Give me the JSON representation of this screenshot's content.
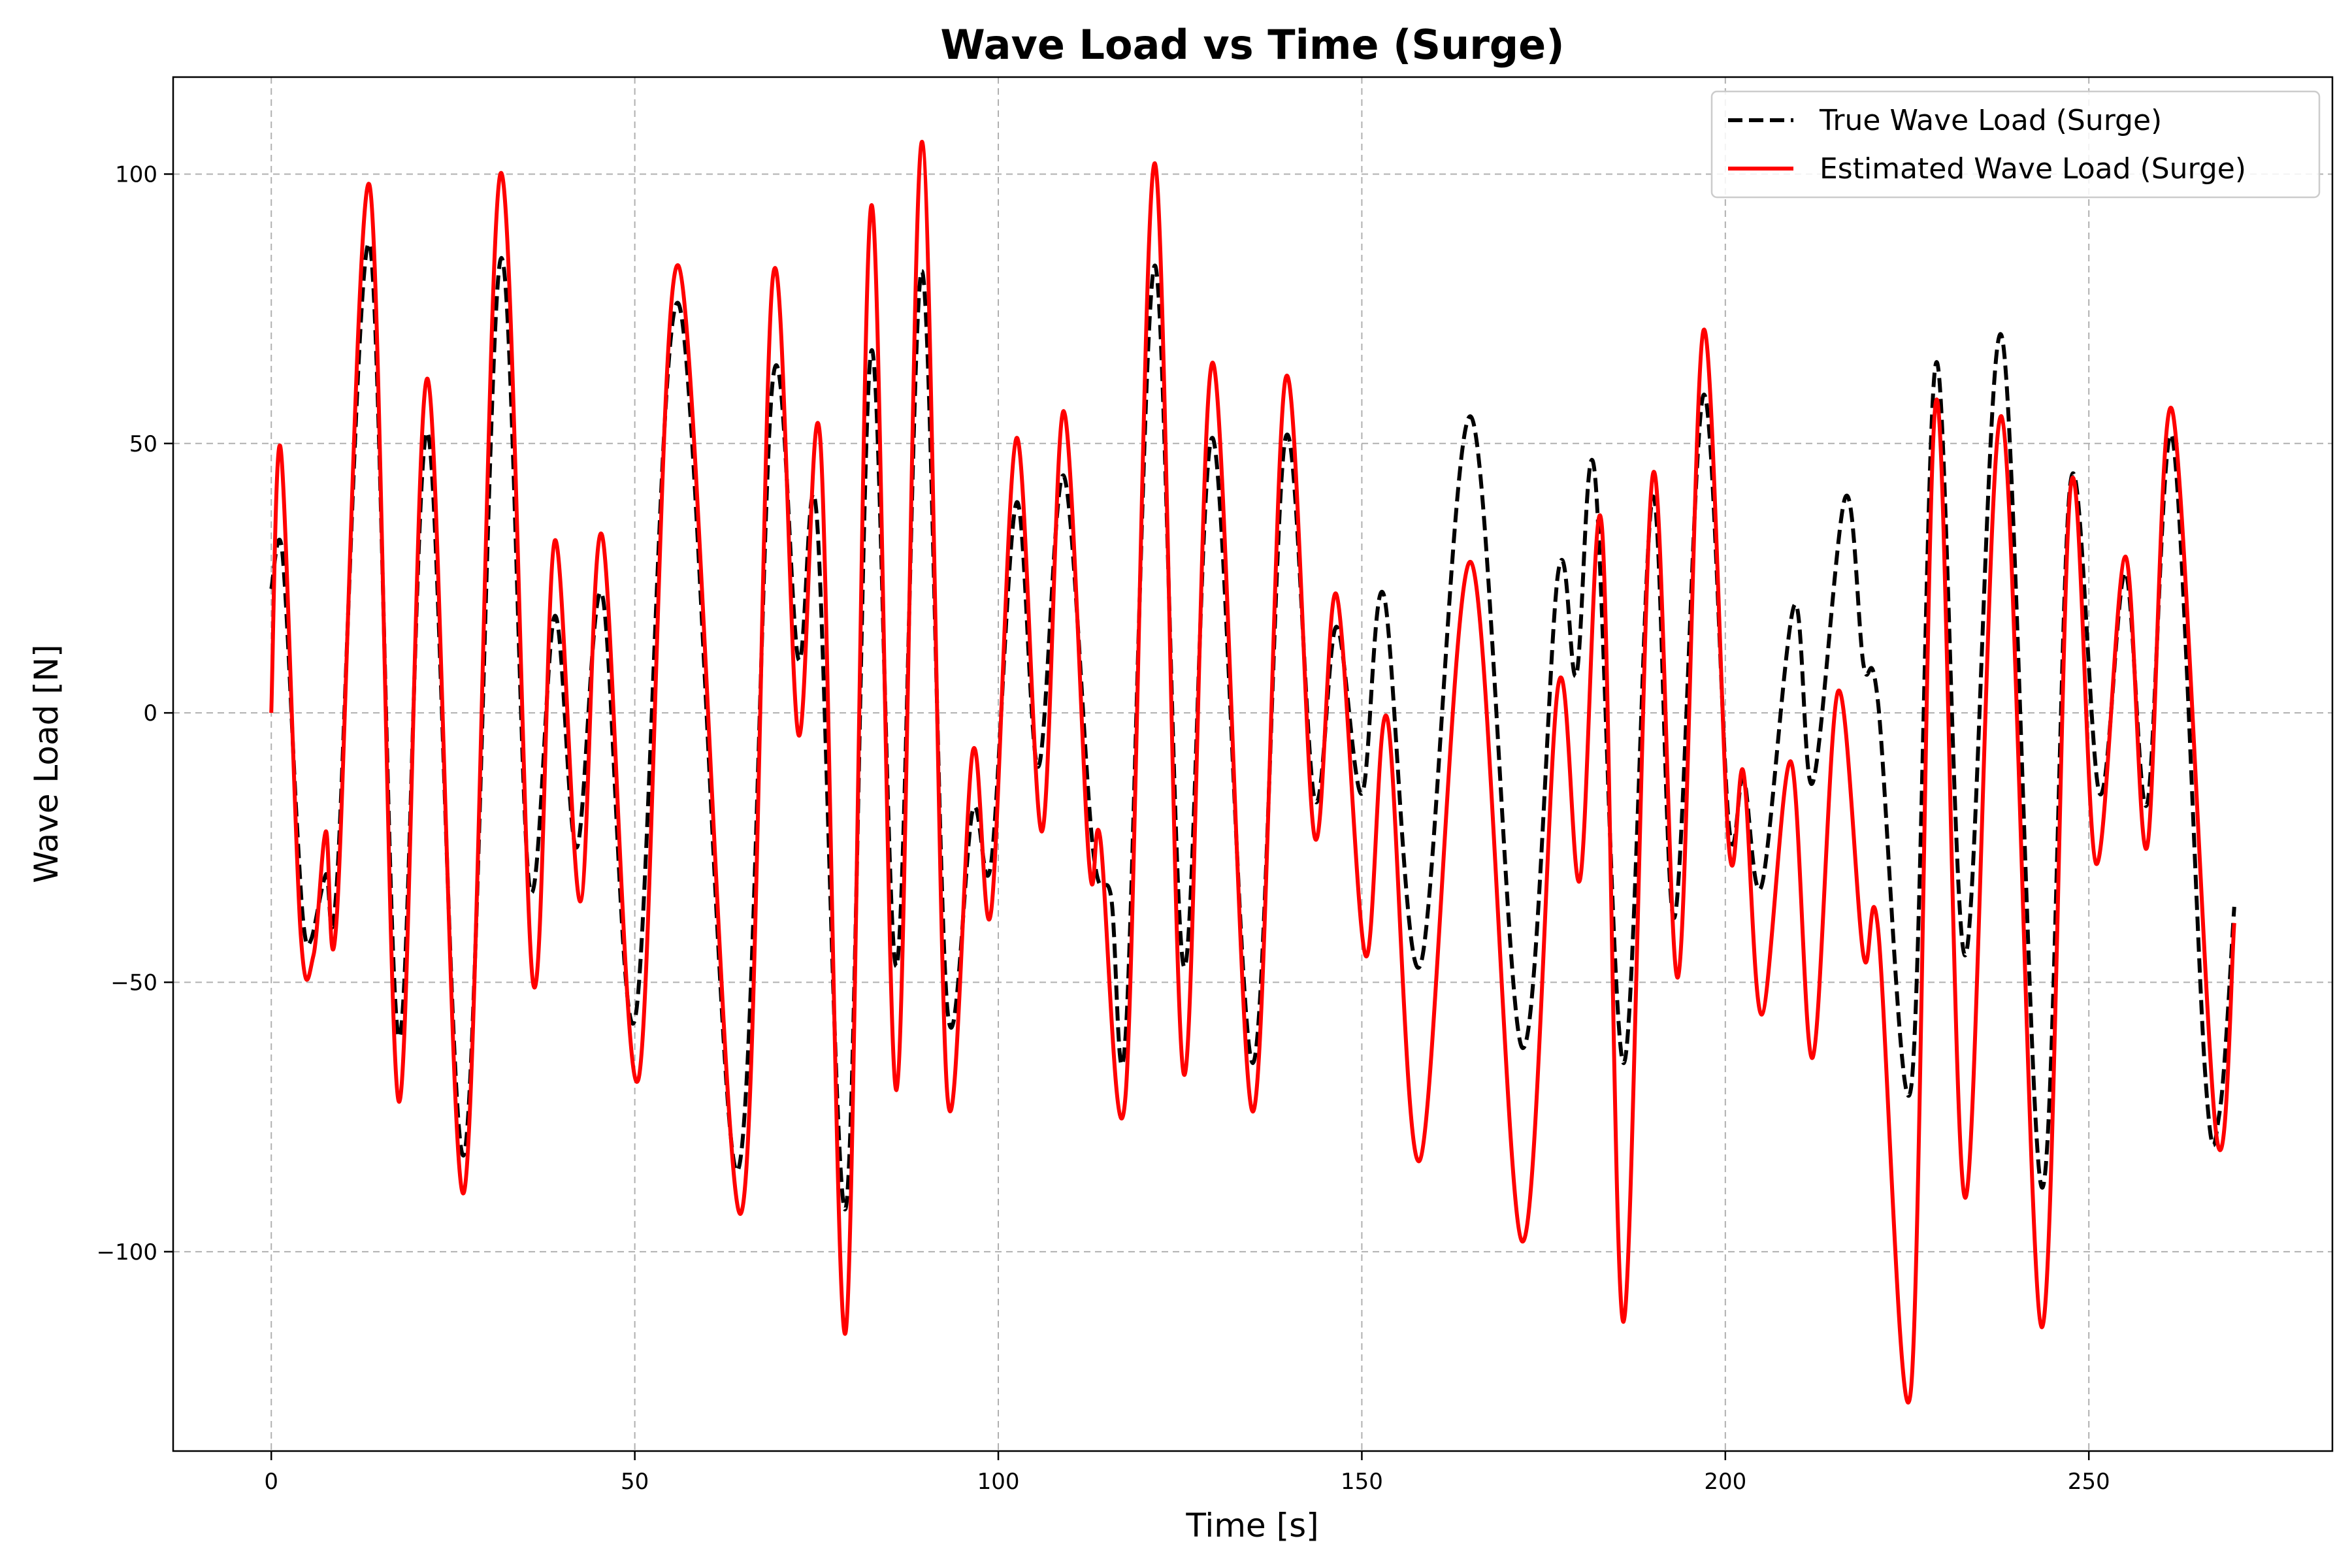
{
  "chart_data": {
    "type": "line",
    "title": "Wave Load vs Time (Surge)",
    "xlabel": "Time [s]",
    "ylabel": "Wave Load [N]",
    "xlim": [
      -13.5,
      283.5
    ],
    "ylim": [
      -137,
      118
    ],
    "xticks": [
      0,
      50,
      100,
      150,
      200,
      250
    ],
    "yticks": [
      -100,
      -50,
      0,
      50,
      100
    ],
    "xtick_labels": [
      "0",
      "50",
      "100",
      "150",
      "200",
      "250"
    ],
    "ytick_labels": [
      "−100",
      "−50",
      "0",
      "50",
      "100"
    ],
    "grid": true,
    "legend_position": "top-right",
    "series": [
      {
        "name": "True Wave Load (Surge)",
        "color": "#000000",
        "style": "dashed",
        "points": [
          [
            0,
            23
          ],
          [
            1.5,
            30
          ],
          [
            3.5,
            -20
          ],
          [
            4.5,
            -40
          ],
          [
            5.5,
            -42
          ],
          [
            7.5,
            -30
          ],
          [
            9,
            -32
          ],
          [
            13.5,
            87
          ],
          [
            17.5,
            -60
          ],
          [
            21.5,
            52
          ],
          [
            26.5,
            -82
          ],
          [
            31.5,
            84
          ],
          [
            35.5,
            -32
          ],
          [
            39,
            18
          ],
          [
            42,
            -25
          ],
          [
            45.5,
            22
          ],
          [
            50,
            -57
          ],
          [
            56,
            76
          ],
          [
            64,
            -85
          ],
          [
            69,
            62
          ],
          [
            72.5,
            10
          ],
          [
            75,
            37
          ],
          [
            79,
            -92
          ],
          [
            82.5,
            67
          ],
          [
            86,
            -47
          ],
          [
            89.5,
            82
          ],
          [
            93,
            -55
          ],
          [
            96.5,
            -18
          ],
          [
            99,
            -28
          ],
          [
            102.5,
            39
          ],
          [
            105.5,
            -10
          ],
          [
            109,
            44
          ],
          [
            113,
            -25
          ],
          [
            115.5,
            -34
          ],
          [
            117.5,
            -60
          ],
          [
            121.5,
            83
          ],
          [
            125.5,
            -47
          ],
          [
            129.5,
            51
          ],
          [
            135,
            -65
          ],
          [
            139.5,
            51
          ],
          [
            143.5,
            -16
          ],
          [
            146.5,
            16
          ],
          [
            150,
            -15
          ],
          [
            153,
            22
          ],
          [
            158,
            -47
          ],
          [
            165,
            55
          ],
          [
            172,
            -62
          ],
          [
            177,
            26
          ],
          [
            179.5,
            7
          ],
          [
            182,
            45
          ],
          [
            186,
            -65
          ],
          [
            190,
            40
          ],
          [
            193,
            -38
          ],
          [
            197,
            59
          ],
          [
            200.5,
            -21
          ],
          [
            202.5,
            -12
          ],
          [
            205,
            -32
          ],
          [
            209.5,
            20
          ],
          [
            212,
            -13
          ],
          [
            216.5,
            40
          ],
          [
            219,
            9
          ],
          [
            221,
            2
          ],
          [
            225.5,
            -70
          ],
          [
            229,
            65
          ],
          [
            233,
            -45
          ],
          [
            238,
            70
          ],
          [
            243.5,
            -88
          ],
          [
            247.5,
            43
          ],
          [
            251.5,
            -15
          ],
          [
            255,
            26
          ],
          [
            258,
            -17
          ],
          [
            261.5,
            51
          ],
          [
            266,
            -67
          ],
          [
            268,
            -74
          ],
          [
            270,
            -36
          ]
        ]
      },
      {
        "name": "Estimated Wave Load (Surge)",
        "color": "#ff0000",
        "style": "solid",
        "points": [
          [
            0,
            0
          ],
          [
            1.3,
            49
          ],
          [
            4,
            -40
          ],
          [
            5.8,
            -45
          ],
          [
            7.5,
            -22
          ],
          [
            9,
            -38
          ],
          [
            13.5,
            98
          ],
          [
            17.5,
            -72
          ],
          [
            21.5,
            62
          ],
          [
            26.5,
            -89
          ],
          [
            31.5,
            100
          ],
          [
            36,
            -50
          ],
          [
            39,
            32
          ],
          [
            42.5,
            -35
          ],
          [
            45.5,
            33
          ],
          [
            50.5,
            -68
          ],
          [
            56,
            83
          ],
          [
            64.5,
            -93
          ],
          [
            69,
            81
          ],
          [
            72.5,
            -4
          ],
          [
            75.5,
            51
          ],
          [
            79,
            -115
          ],
          [
            82.5,
            94
          ],
          [
            86,
            -70
          ],
          [
            89.5,
            106
          ],
          [
            93,
            -71
          ],
          [
            96.5,
            -7
          ],
          [
            99,
            -37
          ],
          [
            102.5,
            51
          ],
          [
            106,
            -22
          ],
          [
            109,
            56
          ],
          [
            112.5,
            -28
          ],
          [
            114,
            -23
          ],
          [
            117.5,
            -71
          ],
          [
            121.5,
            102
          ],
          [
            125.5,
            -67
          ],
          [
            129.5,
            65
          ],
          [
            135,
            -74
          ],
          [
            139.5,
            62
          ],
          [
            143.5,
            -23
          ],
          [
            146.5,
            22
          ],
          [
            150.5,
            -45
          ],
          [
            153.5,
            -1
          ],
          [
            158,
            -83
          ],
          [
            165,
            28
          ],
          [
            172,
            -98
          ],
          [
            177,
            5
          ],
          [
            180,
            -31
          ],
          [
            183,
            35
          ],
          [
            186,
            -113
          ],
          [
            190,
            44
          ],
          [
            193.5,
            -49
          ],
          [
            197,
            71
          ],
          [
            200.5,
            -25
          ],
          [
            202.5,
            -11
          ],
          [
            205,
            -56
          ],
          [
            209,
            -9
          ],
          [
            212,
            -64
          ],
          [
            215.5,
            4
          ],
          [
            219,
            -45
          ],
          [
            221,
            -40
          ],
          [
            225.5,
            -126
          ],
          [
            229,
            58
          ],
          [
            233,
            -90
          ],
          [
            238,
            55
          ],
          [
            243.5,
            -114
          ],
          [
            247.5,
            42
          ],
          [
            251,
            -28
          ],
          [
            255,
            29
          ],
          [
            258,
            -25
          ],
          [
            261.5,
            56
          ],
          [
            267.5,
            -78
          ],
          [
            270,
            -39
          ]
        ]
      }
    ]
  }
}
